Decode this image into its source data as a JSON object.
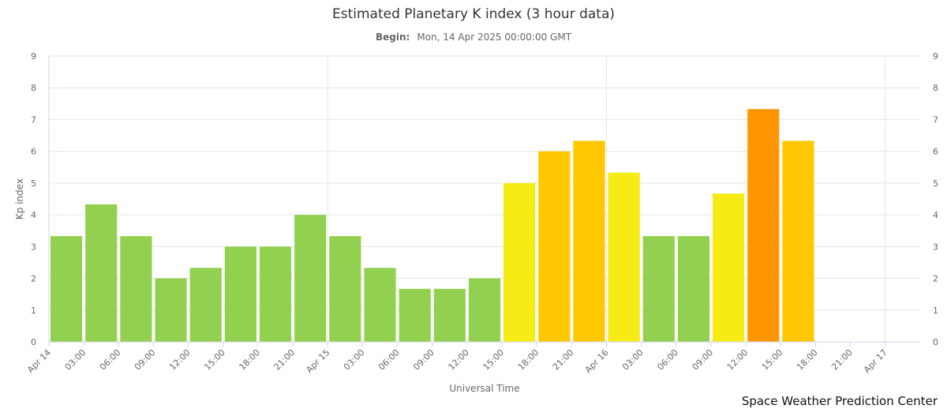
{
  "chart_data": {
    "type": "bar",
    "title": "Estimated Planetary K index (3 hour data)",
    "subtitle_label": "Begin:",
    "subtitle_value": "Mon, 14 Apr 2025 00:00:00 GMT",
    "xlabel": "Universal Time",
    "ylabel": "Kp index",
    "ylim": [
      0,
      9
    ],
    "yticks": [
      0,
      1,
      2,
      3,
      4,
      5,
      6,
      7,
      8,
      9
    ],
    "grid": true,
    "x_tick_labels": [
      "Apr 14",
      "03:00",
      "06:00",
      "09:00",
      "12:00",
      "15:00",
      "18:00",
      "21:00",
      "Apr 15",
      "03:00",
      "06:00",
      "09:00",
      "12:00",
      "15:00",
      "18:00",
      "21:00",
      "Apr 16",
      "03:00",
      "06:00",
      "09:00",
      "12:00",
      "15:00",
      "18:00",
      "21:00",
      "Apr 17"
    ],
    "x_tick_index": [
      0,
      1,
      2,
      3,
      4,
      5,
      6,
      7,
      8,
      9,
      10,
      11,
      12,
      13,
      14,
      15,
      16,
      17,
      18,
      19,
      20,
      21,
      22,
      23,
      24
    ],
    "values": [
      3.33,
      4.33,
      3.33,
      2.0,
      2.33,
      3.0,
      3.0,
      4.0,
      3.33,
      2.33,
      1.67,
      1.67,
      2.0,
      5.0,
      6.0,
      6.33,
      5.33,
      3.33,
      3.33,
      4.67,
      7.33,
      6.33
    ],
    "colors": [
      "#92d050",
      "#92d050",
      "#92d050",
      "#92d050",
      "#92d050",
      "#92d050",
      "#92d050",
      "#92d050",
      "#92d050",
      "#92d050",
      "#92d050",
      "#92d050",
      "#92d050",
      "#f6eb14",
      "#ffc800",
      "#ffc800",
      "#f6eb14",
      "#92d050",
      "#92d050",
      "#f6eb14",
      "#ff9600",
      "#ffc800"
    ],
    "legend": "none"
  },
  "credit": "Space Weather Prediction Center"
}
